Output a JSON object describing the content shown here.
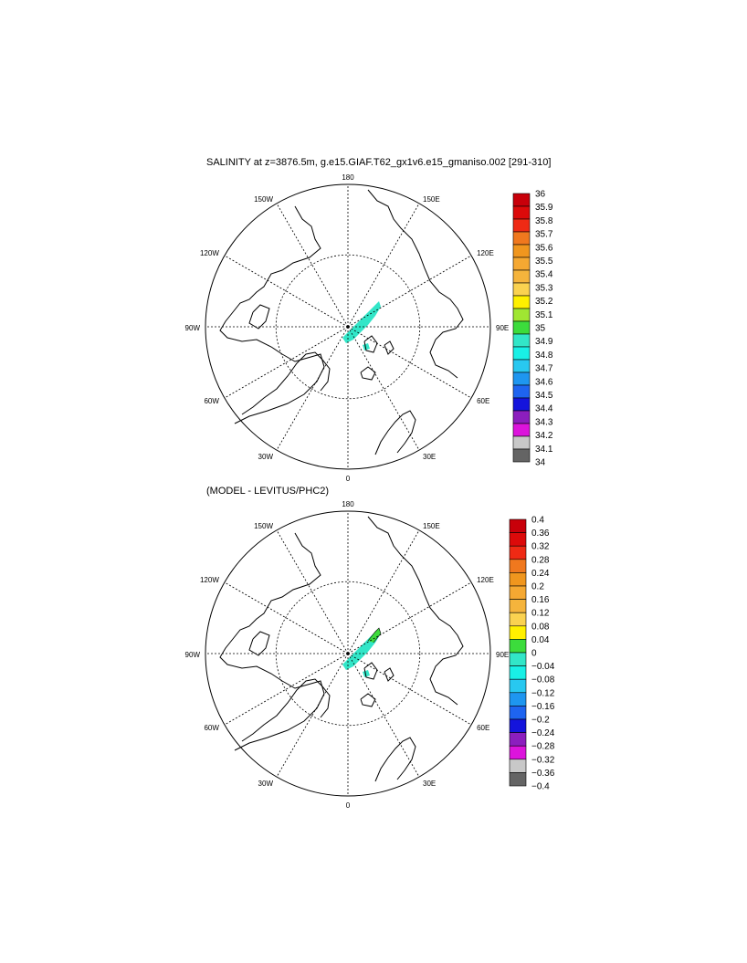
{
  "panels": [
    {
      "title": "SALINITY at z=3876.5m, g.e15.GIAF.T62_gx1v6.e15_gmaniso.002 [291-310]",
      "longitude_labels": {
        "top": "180",
        "bottom": "0",
        "left": "90W",
        "right": "90E",
        "upper_left_1": "150W",
        "upper_left_2": "120W",
        "lower_left_1": "60W",
        "lower_left_2": "30W",
        "upper_right_1": "150E",
        "upper_right_2": "120E",
        "lower_right_1": "60E",
        "lower_right_2": "30E"
      },
      "colorbar": {
        "labels": [
          "36",
          "35.9",
          "35.8",
          "35.7",
          "35.6",
          "35.5",
          "35.4",
          "35.3",
          "35.2",
          "35.1",
          "35",
          "34.9",
          "34.8",
          "34.7",
          "34.6",
          "34.5",
          "34.4",
          "34.3",
          "34.2",
          "34.1",
          "34"
        ],
        "colors": [
          "#c8000a",
          "#dc0a0a",
          "#ef2a14",
          "#f0781e",
          "#f0961e",
          "#f5a832",
          "#f5b43c",
          "#fad250",
          "#fff000",
          "#a0e632",
          "#3cdc3c",
          "#32e6c8",
          "#19f0e6",
          "#28c8f0",
          "#1e96f0",
          "#1e64f0",
          "#1414dc",
          "#8c1ebe",
          "#dc14dc",
          "#c8c8c8",
          "#646464"
        ]
      },
      "data_fill_color": "#32e6c8"
    },
    {
      "title": "(MODEL - LEVITUS/PHC2)",
      "longitude_labels": {
        "top": "180",
        "bottom": "0",
        "left": "90W",
        "right": "90E",
        "upper_left_1": "150W",
        "upper_left_2": "120W",
        "lower_left_1": "60W",
        "lower_left_2": "30W",
        "upper_right_1": "150E",
        "upper_right_2": "120E",
        "lower_right_1": "60E",
        "lower_right_2": "30E"
      },
      "colorbar": {
        "labels": [
          "0.4",
          "0.36",
          "0.32",
          "0.28",
          "0.24",
          "0.2",
          "0.16",
          "0.12",
          "0.08",
          "0.04",
          "0",
          "−0.04",
          "−0.08",
          "−0.12",
          "−0.16",
          "−0.2",
          "−0.24",
          "−0.28",
          "−0.32",
          "−0.36",
          "−0.4"
        ],
        "colors": [
          "#c8000a",
          "#dc0a0a",
          "#ef2a14",
          "#f0781e",
          "#f0961e",
          "#f5a832",
          "#f5b43c",
          "#fad250",
          "#fff000",
          "#3cdc3c",
          "#32e6c8",
          "#19f0e6",
          "#28c8f0",
          "#1e96f0",
          "#1e64f0",
          "#1414dc",
          "#8c1ebe",
          "#dc14dc",
          "#c8c8c8",
          "#646464"
        ]
      },
      "data_fill_color": "#32e6c8",
      "data_fill_color_secondary": "#3cdc3c"
    }
  ]
}
